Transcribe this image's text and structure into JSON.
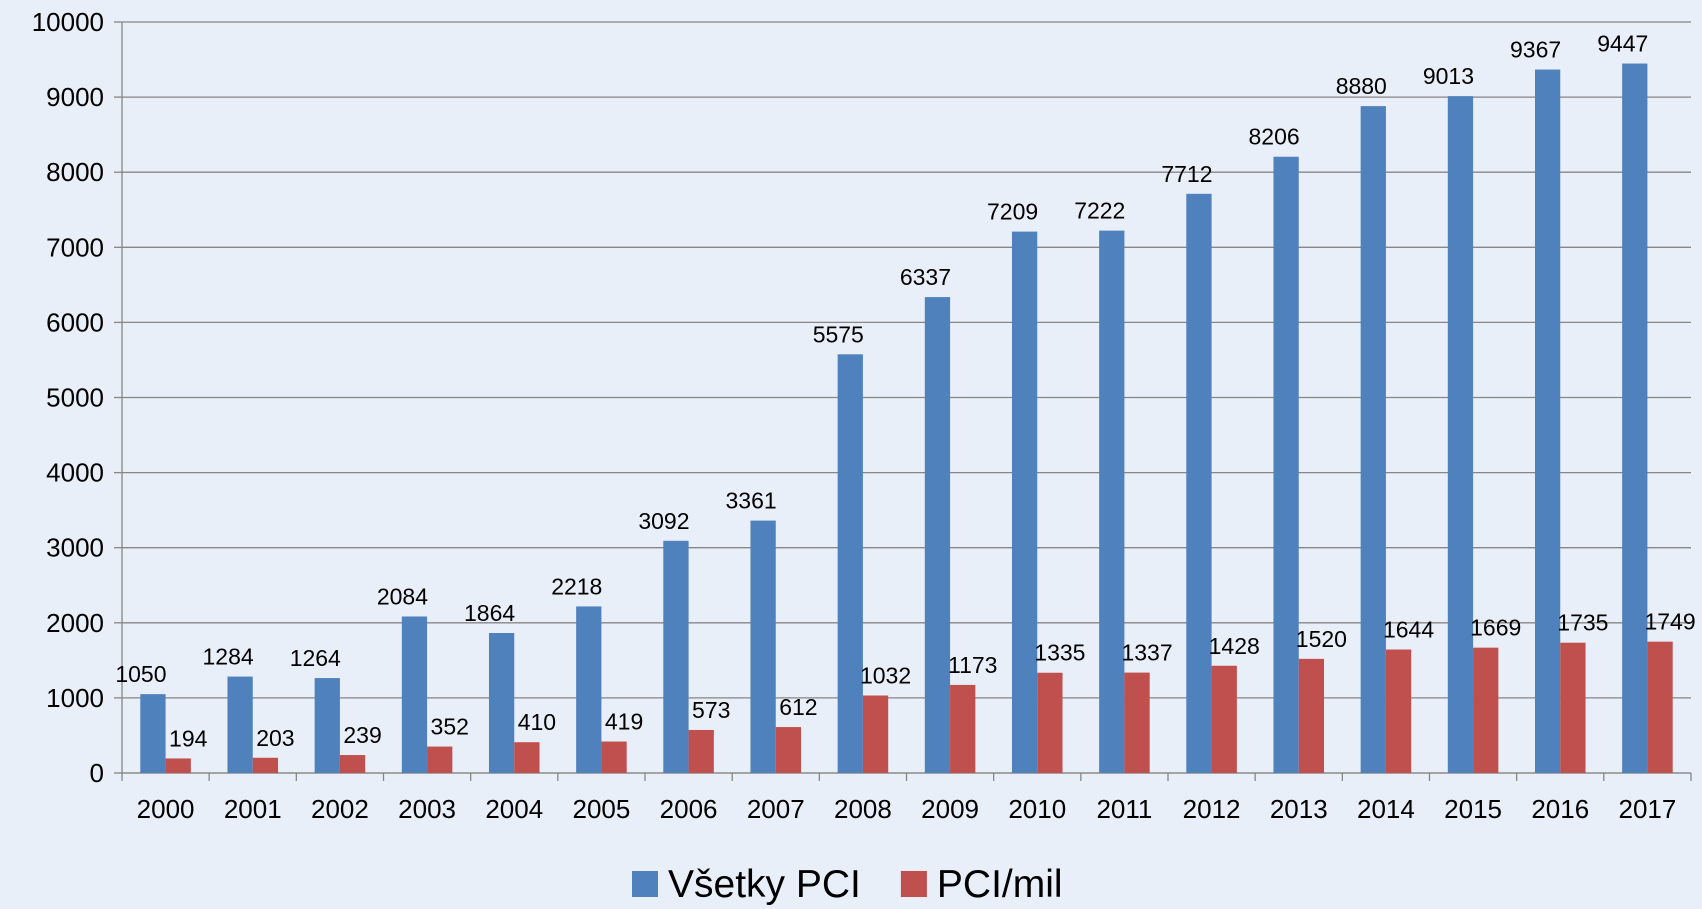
{
  "chart_data": {
    "type": "bar",
    "categories": [
      "2000",
      "2001",
      "2002",
      "2003",
      "2004",
      "2005",
      "2006",
      "2007",
      "2008",
      "2009",
      "2010",
      "2011",
      "2012",
      "2013",
      "2014",
      "2015",
      "2016",
      "2017"
    ],
    "series": [
      {
        "name": "Všetky PCI",
        "color": "#4f81bd",
        "values": [
          1050,
          1284,
          1264,
          2084,
          1864,
          2218,
          3092,
          3361,
          5575,
          6337,
          7209,
          7222,
          7712,
          8206,
          8880,
          9013,
          9367,
          9447
        ]
      },
      {
        "name": "PCI/mil",
        "color": "#c0504d",
        "values": [
          194,
          203,
          239,
          352,
          410,
          419,
          573,
          612,
          1032,
          1173,
          1335,
          1337,
          1428,
          1520,
          1644,
          1669,
          1735,
          1749
        ]
      }
    ],
    "ylim": [
      0,
      10000
    ],
    "yticks": [
      0,
      1000,
      2000,
      3000,
      4000,
      5000,
      6000,
      7000,
      8000,
      9000,
      10000
    ],
    "grid": true,
    "legend": "bottom"
  }
}
